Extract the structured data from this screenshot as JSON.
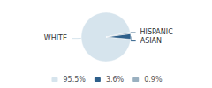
{
  "chart_data": {
    "type": "pie",
    "categories": [
      "WHITE",
      "ASIAN",
      "HISPANIC"
    ],
    "values": [
      95.5,
      3.6,
      0.9
    ],
    "value_labels": [
      "95.5%",
      "3.6%",
      "0.9%"
    ],
    "colors": [
      "#d6e4ed",
      "#2e5f8a",
      "#9ab0c0"
    ],
    "legend": "bottom"
  }
}
